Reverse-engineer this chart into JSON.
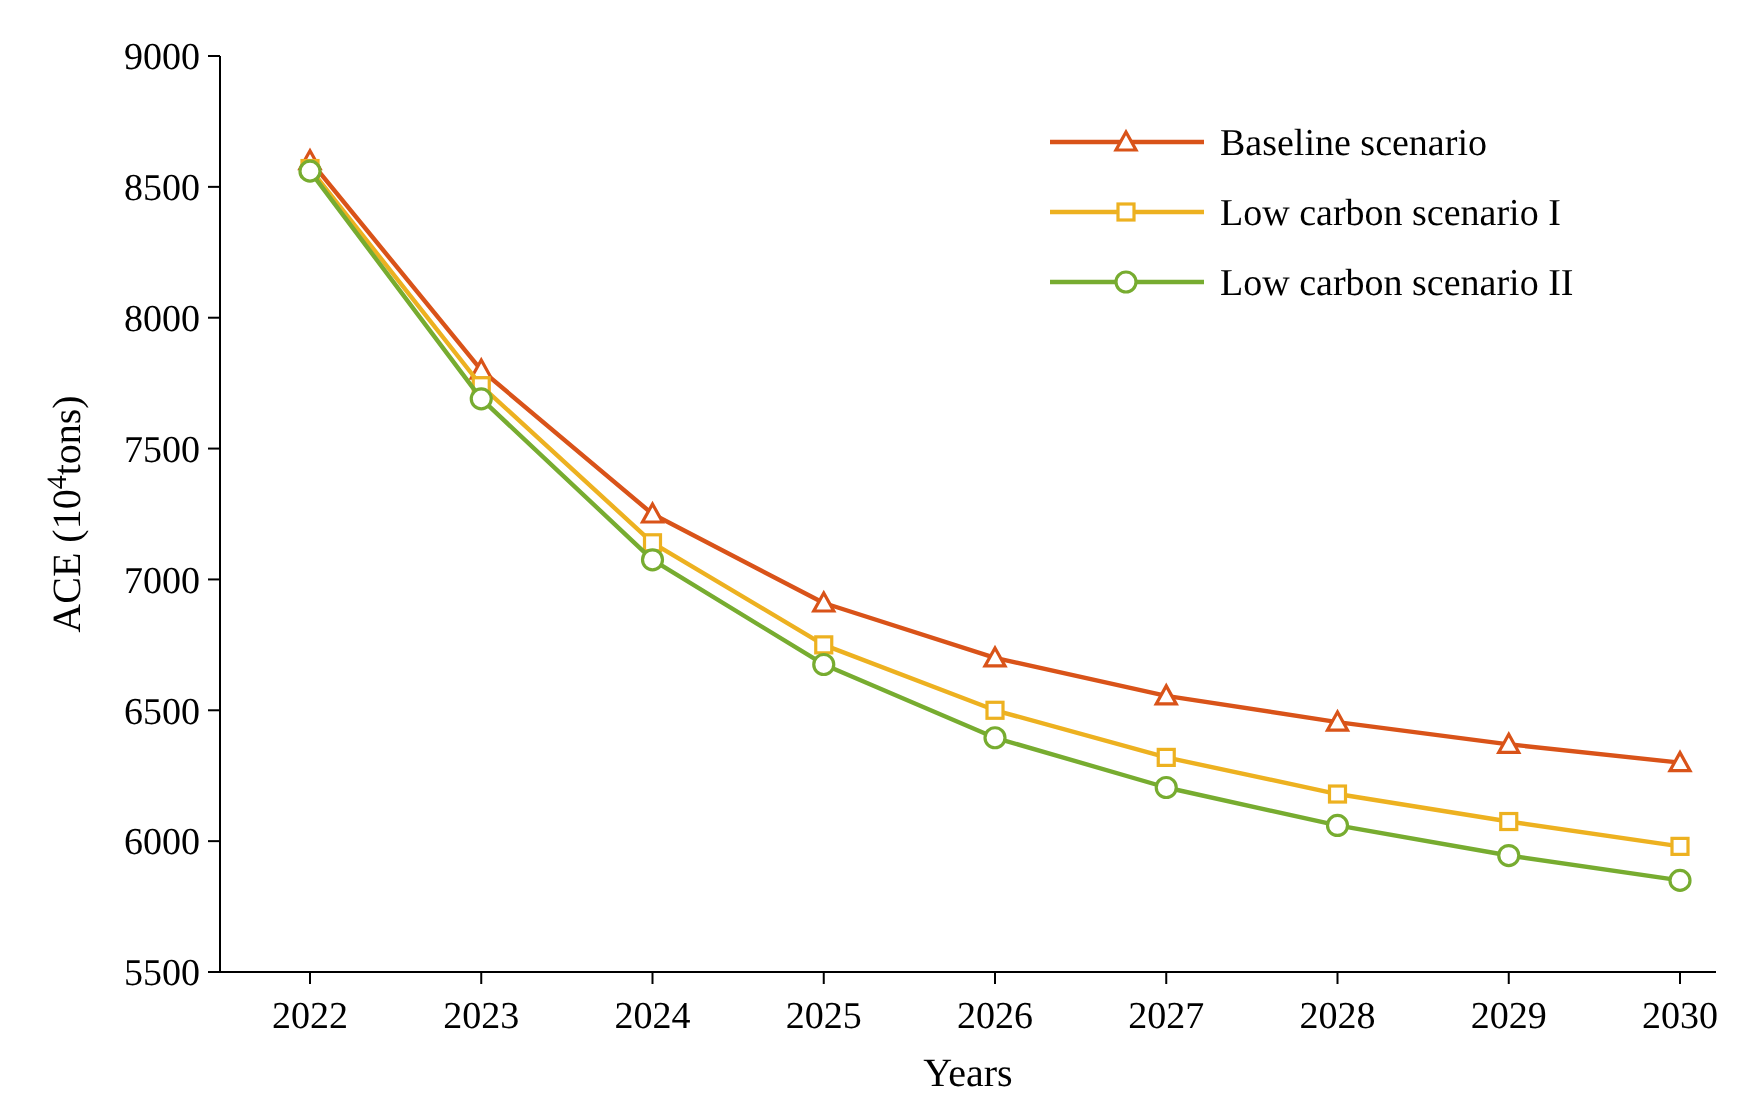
{
  "chart_data": {
    "type": "line",
    "xlabel": "Years",
    "ylabel": "ACE (10$^{4}$tons)",
    "categories": [
      "2022",
      "2023",
      "2024",
      "2025",
      "2026",
      "2027",
      "2028",
      "2029",
      "2030"
    ],
    "series": [
      {
        "name": "Baseline scenario",
        "color": "#d95319",
        "marker": "triangle",
        "values": [
          8600,
          7800,
          7250,
          6910,
          6700,
          6555,
          6455,
          6370,
          6300
        ]
      },
      {
        "name": "Low carbon scenario I",
        "color": "#edb120",
        "marker": "square",
        "values": [
          8570,
          7740,
          7140,
          6750,
          6500,
          6320,
          6180,
          6075,
          5980
        ]
      },
      {
        "name": "Low carbon scenario II",
        "color": "#77ac30",
        "marker": "circle",
        "values": [
          8560,
          7690,
          7075,
          6675,
          6395,
          6205,
          6060,
          5945,
          5850
        ]
      }
    ],
    "ylim": [
      5500,
      9000
    ],
    "yticks": [
      5500,
      6000,
      6500,
      7000,
      7500,
      8000,
      8500,
      9000
    ],
    "legend": "top right",
    "line_style": "solid"
  }
}
